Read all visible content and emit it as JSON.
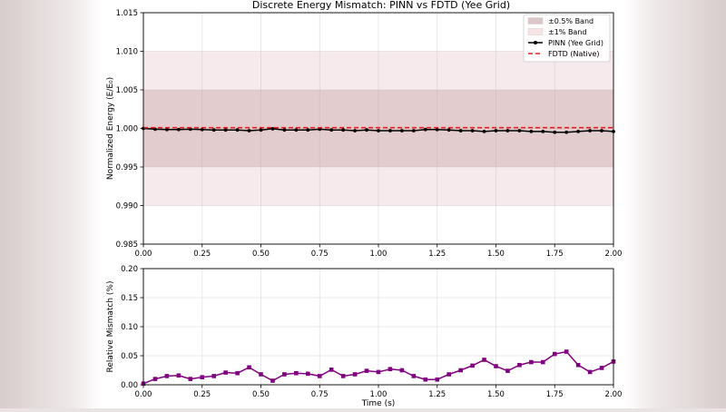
{
  "figure": {
    "title": "Discrete Energy Mismatch: PINN vs FDTD (Yee Grid)"
  },
  "chart_data": [
    {
      "type": "line",
      "title": "Discrete Energy Mismatch: PINN vs FDTD (Yee Grid)",
      "xlabel": "",
      "ylabel": "Normalized Energy (E/E₀)",
      "xlim": [
        0,
        2
      ],
      "ylim": [
        0.985,
        1.015
      ],
      "grid": true,
      "legend_position": "top-right",
      "x_ticks": [
        "0.00",
        "0.25",
        "0.50",
        "0.75",
        "1.00",
        "1.25",
        "1.50",
        "1.75",
        "2.00"
      ],
      "y_ticks": [
        "0.985",
        "0.990",
        "0.995",
        "1.000",
        "1.005",
        "1.010",
        "1.015"
      ],
      "bands": [
        {
          "name": "±0.5% Band",
          "lower": 0.995,
          "upper": 1.005,
          "color": "#c9a9ab",
          "opacity": 0.45
        },
        {
          "name": "±1% Band",
          "lower": 0.99,
          "upper": 1.01,
          "color": "#f2dcdf",
          "opacity": 0.6
        }
      ],
      "x": [
        0,
        0.05,
        0.1,
        0.15,
        0.2,
        0.25,
        0.3,
        0.35,
        0.4,
        0.45,
        0.5,
        0.55,
        0.6,
        0.65,
        0.7,
        0.75,
        0.8,
        0.85,
        0.9,
        0.95,
        1.0,
        1.05,
        1.1,
        1.15,
        1.2,
        1.25,
        1.3,
        1.35,
        1.4,
        1.45,
        1.5,
        1.55,
        1.6,
        1.65,
        1.7,
        1.75,
        1.8,
        1.85,
        1.9,
        1.95,
        2.0
      ],
      "series": [
        {
          "name": "PINN (Yee Grid)",
          "color": "#000000",
          "style": "solid-marker",
          "values": [
            1.0,
            0.9999,
            0.99985,
            0.99985,
            0.9999,
            0.99985,
            0.9998,
            0.9998,
            0.9998,
            0.9997,
            0.9998,
            0.99995,
            0.9998,
            0.9998,
            0.9998,
            0.9999,
            0.9998,
            0.9998,
            0.9997,
            0.9998,
            0.9997,
            0.9997,
            0.9997,
            0.9997,
            0.99985,
            0.99985,
            0.9998,
            0.9997,
            0.9997,
            0.9996,
            0.9997,
            0.9997,
            0.9997,
            0.9996,
            0.9996,
            0.9995,
            0.9995,
            0.9996,
            0.9997,
            0.9997,
            0.9996
          ]
        },
        {
          "name": "FDTD (Native)",
          "color": "#d62728",
          "style": "dashed",
          "values": [
            1.0001,
            1.0001,
            1.0001,
            1.0001,
            1.0001,
            1.0001,
            1.0001,
            1.0001,
            1.0001,
            1.0001,
            1.0001,
            1.0001,
            1.0001,
            1.0001,
            1.0001,
            1.0001,
            1.0001,
            1.0001,
            1.0001,
            1.0001,
            1.0001,
            1.0001,
            1.0001,
            1.0001,
            1.0001,
            1.0001,
            1.0001,
            1.0001,
            1.0001,
            1.0001,
            1.0001,
            1.0001,
            1.0001,
            1.0001,
            1.0001,
            1.0001,
            1.0001,
            1.0001,
            1.0001,
            1.0001,
            1.0001
          ]
        }
      ]
    },
    {
      "type": "line",
      "title": "",
      "xlabel": "Time (s)",
      "ylabel": "Relative Mismatch (%)",
      "xlim": [
        0,
        2
      ],
      "ylim": [
        0,
        0.2
      ],
      "grid": true,
      "x_ticks": [
        "0.00",
        "0.25",
        "0.50",
        "0.75",
        "1.00",
        "1.25",
        "1.50",
        "1.75",
        "2.00"
      ],
      "y_ticks": [
        "0.00",
        "0.05",
        "0.10",
        "0.15",
        "0.20"
      ],
      "x": [
        0,
        0.05,
        0.1,
        0.15,
        0.2,
        0.25,
        0.3,
        0.35,
        0.4,
        0.45,
        0.5,
        0.55,
        0.6,
        0.65,
        0.7,
        0.75,
        0.8,
        0.85,
        0.9,
        0.95,
        1.0,
        1.05,
        1.1,
        1.15,
        1.2,
        1.25,
        1.3,
        1.35,
        1.4,
        1.45,
        1.5,
        1.55,
        1.6,
        1.65,
        1.7,
        1.75,
        1.8,
        1.85,
        1.9,
        1.95,
        2.0
      ],
      "series": [
        {
          "name": "",
          "color": "#800080",
          "style": "solid-square-marker",
          "values": [
            0.002,
            0.01,
            0.015,
            0.016,
            0.01,
            0.013,
            0.015,
            0.021,
            0.02,
            0.03,
            0.018,
            0.007,
            0.018,
            0.02,
            0.019,
            0.015,
            0.026,
            0.015,
            0.018,
            0.024,
            0.022,
            0.027,
            0.025,
            0.015,
            0.009,
            0.009,
            0.018,
            0.025,
            0.033,
            0.043,
            0.032,
            0.024,
            0.034,
            0.039,
            0.039,
            0.053,
            0.057,
            0.034,
            0.022,
            0.029,
            0.04
          ]
        }
      ]
    }
  ]
}
